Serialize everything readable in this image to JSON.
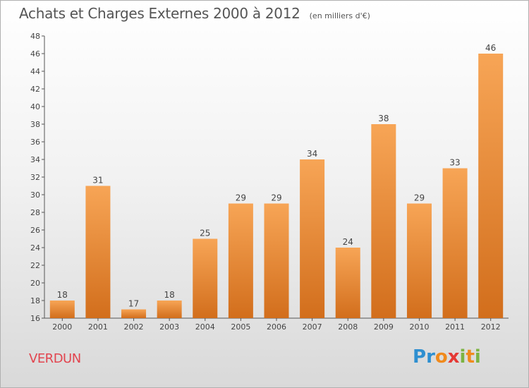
{
  "header": {
    "title": "Achats et Charges Externes 2000 à 2012",
    "subtitle": "(en milliers d'€)"
  },
  "footer": {
    "place": "VERDUN",
    "brand": [
      "P",
      "r",
      "o",
      "x",
      "i",
      "t",
      "i"
    ],
    "brand_colors": [
      "#2e8fd0",
      "#2e8fd0",
      "#f08a1c",
      "#e53935",
      "#7cb342",
      "#f08a1c",
      "#7cb342"
    ]
  },
  "colors": {
    "bar_light": "#f7a556",
    "bar_dark": "#d26e1c",
    "axis": "#555555",
    "grid": "#cfcfcf"
  },
  "chart_data": {
    "type": "bar",
    "categories": [
      "2000",
      "2001",
      "2002",
      "2003",
      "2004",
      "2005",
      "2006",
      "2007",
      "2008",
      "2009",
      "2010",
      "2011",
      "2012"
    ],
    "values": [
      18,
      31,
      17,
      18,
      25,
      29,
      29,
      34,
      24,
      38,
      29,
      33,
      46
    ],
    "ylim": [
      16,
      48
    ],
    "yticks": [
      16,
      18,
      20,
      22,
      24,
      26,
      28,
      30,
      32,
      34,
      36,
      38,
      40,
      42,
      44,
      46,
      48
    ],
    "data_labels": true,
    "grid": false
  }
}
